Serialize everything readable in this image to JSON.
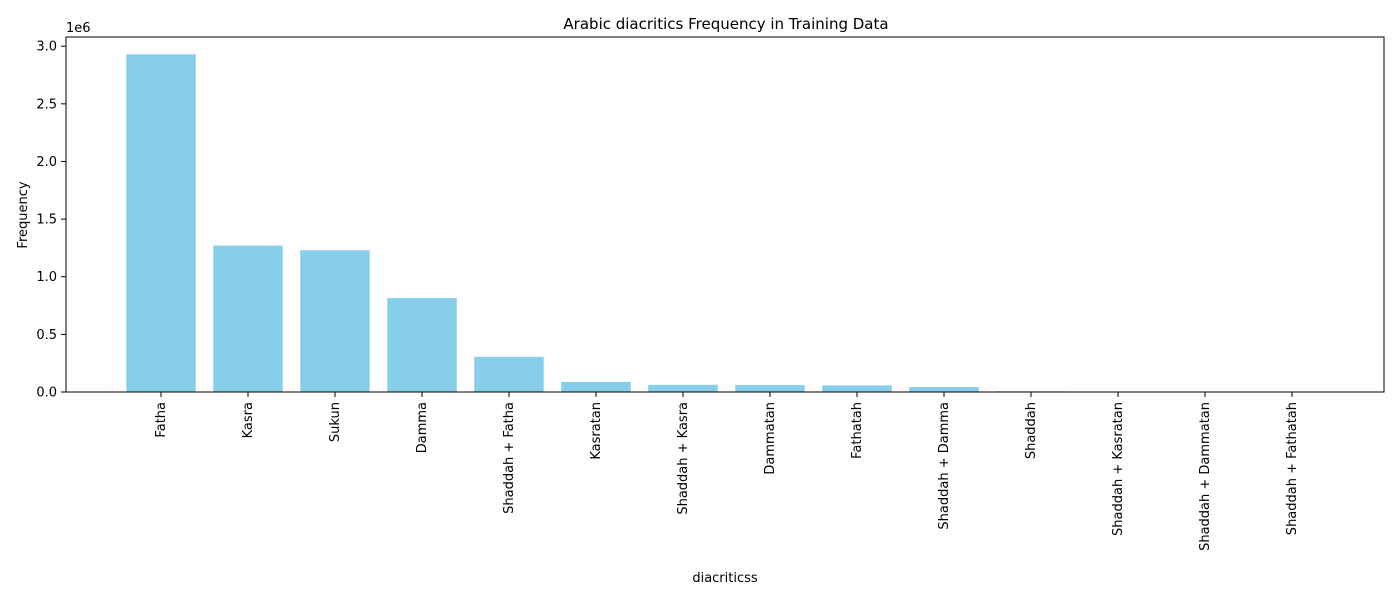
{
  "chart_data": {
    "type": "bar",
    "title": "Arabic diacritics Frequency in Training Data",
    "xlabel": "diacriticss",
    "ylabel": "Frequency",
    "y_multiplier_label": "1e6",
    "categories": [
      "Fatha",
      "Kasra",
      "Sukun",
      "Damma",
      "Shaddah + Fatha",
      "Kasratan",
      "Shaddah + Kasra",
      "Dammatan",
      "Fathatah",
      "Shaddah + Damma",
      "Shaddah",
      "Shaddah + Kasratan",
      "Shaddah + Dammatan",
      "Shaddah + Fathatah"
    ],
    "values": [
      2930000,
      1270000,
      1230000,
      815000,
      305000,
      88000,
      62000,
      60000,
      58000,
      43000,
      6000,
      3000,
      3000,
      3000
    ],
    "ylim": [
      0,
      3080000
    ],
    "y_ticks": [
      0,
      500000,
      1000000,
      1500000,
      2000000,
      2500000,
      3000000
    ],
    "y_tick_labels": [
      "0.0",
      "0.5",
      "1.0",
      "1.5",
      "2.0",
      "2.5",
      "3.0"
    ],
    "bar_color": "#87ceeb",
    "grid": false,
    "legend": "none"
  }
}
